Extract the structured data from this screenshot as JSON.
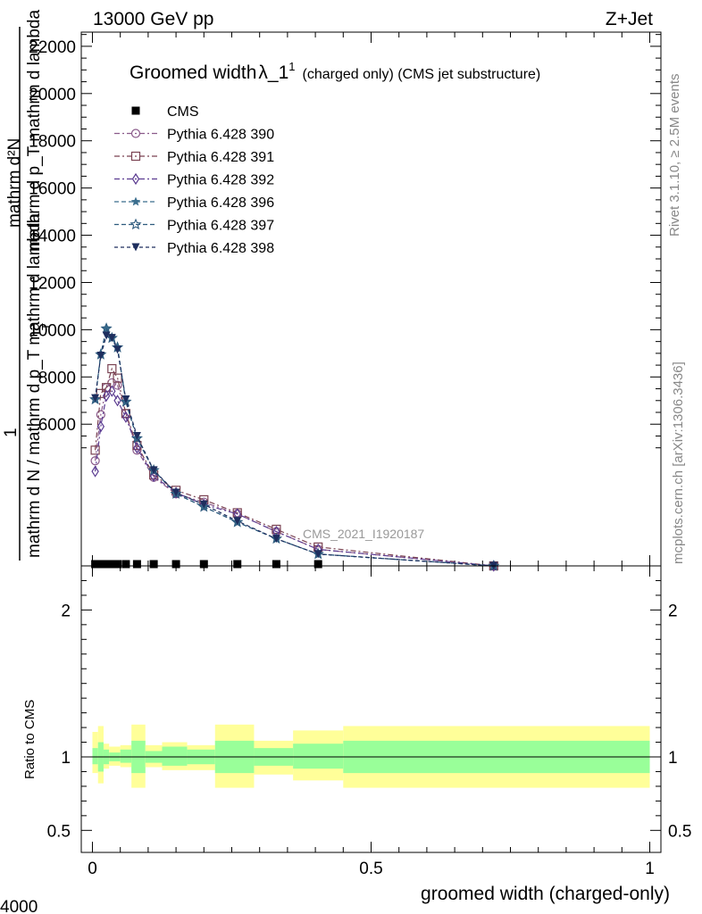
{
  "header": {
    "left_title": "13000 GeV pp",
    "right_title": "Z+Jet"
  },
  "side_labels": {
    "rivet": "Rivet 3.1.10, ≥ 2.5M events",
    "mcplots": "mcplots.cern.ch [arXiv:1306.3436]"
  },
  "watermark": "CMS_2021_I1920187",
  "corner_label": "4000",
  "chart_data": [
    {
      "type": "line",
      "title_main": "Groomed width",
      "title_symbol": "λ_1",
      "title_sup": "1",
      "title_suffix": "(charged only) (CMS jet substructure)",
      "ylabel_top": "mathrm d²N",
      "ylabel_top_denom": "mathrm d p_T mathrm d lambda",
      "ylabel_t_sub": "T",
      "ylabel_one": "1",
      "ylabel_bottom": "mathrm d N / mathrm d p_T mathrm d lambda",
      "xlim": [
        -0.02,
        1.02
      ],
      "ylim": [
        0,
        22600
      ],
      "y_ticks": [
        6000,
        8000,
        10000,
        12000,
        14000,
        16000,
        18000,
        20000,
        22000
      ],
      "y_tick_labels": [
        "6000",
        "8000",
        "10000",
        "12000",
        "14000",
        "16000",
        "18000",
        "20000",
        "22000"
      ],
      "legend_location": "top-left",
      "cms_points": {
        "name": "CMS",
        "x": [
          0.005,
          0.015,
          0.025,
          0.035,
          0.045,
          0.06,
          0.08,
          0.11,
          0.15,
          0.2,
          0.26,
          0.33,
          0.405
        ],
        "y": [
          0,
          0,
          0,
          0,
          0,
          0,
          0,
          0,
          0,
          0,
          0,
          0,
          0
        ],
        "color": "#000000",
        "marker": "square"
      },
      "series": [
        {
          "name": "Pythia 6.428 390",
          "color": "#8a5a8a",
          "marker": "circle-open",
          "dash": "6,3,2,3",
          "x": [
            0.005,
            0.015,
            0.025,
            0.035,
            0.045,
            0.06,
            0.08,
            0.11,
            0.15,
            0.2,
            0.26,
            0.33,
            0.405,
            0.72
          ],
          "y": [
            4450,
            6400,
            7550,
            7750,
            7650,
            6450,
            4900,
            3750,
            3050,
            2700,
            2200,
            1450,
            700,
            0
          ]
        },
        {
          "name": "Pythia 6.428 391",
          "color": "#7a4252",
          "marker": "square-open",
          "dash": "6,3,2,3",
          "x": [
            0.005,
            0.015,
            0.025,
            0.035,
            0.045,
            0.06,
            0.08,
            0.11,
            0.15,
            0.2,
            0.26,
            0.33,
            0.405,
            0.72
          ],
          "y": [
            4900,
            7300,
            7550,
            8350,
            7950,
            6450,
            5100,
            3850,
            3200,
            2800,
            2250,
            1550,
            800,
            0
          ]
        },
        {
          "name": "Pythia 6.428 392",
          "color": "#5a3a90",
          "marker": "diamond-open",
          "dash": "6,3,2,3",
          "x": [
            0.005,
            0.015,
            0.025,
            0.035,
            0.045,
            0.06,
            0.08,
            0.11,
            0.15,
            0.2,
            0.26,
            0.33,
            0.405,
            0.72
          ],
          "y": [
            4000,
            5900,
            7200,
            7400,
            7000,
            6300,
            5000,
            3800,
            3100,
            2600,
            2200,
            1450,
            700,
            0
          ]
        },
        {
          "name": "Pythia 6.428 396",
          "color": "#3a6e8e",
          "marker": "star-filled",
          "dash": "5,3",
          "x": [
            0.005,
            0.015,
            0.025,
            0.035,
            0.045,
            0.06,
            0.08,
            0.11,
            0.15,
            0.2,
            0.26,
            0.33,
            0.405,
            0.72
          ],
          "y": [
            7050,
            8950,
            10050,
            9650,
            9250,
            6950,
            5400,
            4050,
            3050,
            2500,
            1850,
            1150,
            500,
            0
          ]
        },
        {
          "name": "Pythia 6.428 397",
          "color": "#2e5b7e",
          "marker": "star-open",
          "dash": "5,3",
          "x": [
            0.005,
            0.015,
            0.025,
            0.035,
            0.045,
            0.06,
            0.08,
            0.11,
            0.15,
            0.2,
            0.26,
            0.33,
            0.405,
            0.72
          ],
          "y": [
            7050,
            8950,
            10050,
            9650,
            9250,
            6950,
            5400,
            4050,
            3050,
            2500,
            1850,
            1150,
            500,
            0
          ]
        },
        {
          "name": "Pythia 6.428 398",
          "color": "#1e2e5e",
          "marker": "triangle-down-filled",
          "dash": "4,3",
          "x": [
            0.005,
            0.015,
            0.025,
            0.035,
            0.045,
            0.06,
            0.08,
            0.11,
            0.15,
            0.2,
            0.26,
            0.33,
            0.405,
            0.72
          ],
          "y": [
            7100,
            8900,
            9750,
            9650,
            9150,
            7050,
            5500,
            4050,
            3100,
            2600,
            1900,
            1150,
            500,
            0
          ]
        }
      ]
    },
    {
      "type": "area",
      "ylabel": "Ratio to CMS",
      "xlabel": "groomed width (charged-only)",
      "xlim": [
        -0.02,
        1.02
      ],
      "ylim": [
        0.35,
        2.3
      ],
      "x_ticks": [
        0,
        0.5,
        1
      ],
      "x_tick_labels": [
        "0",
        "0.5",
        "1"
      ],
      "y_ticks": [
        0.5,
        1,
        2
      ],
      "y_tick_labels": [
        "0.5",
        "1",
        "2"
      ],
      "reference_line": 1,
      "band_colors": {
        "inner": "#99ff99",
        "outer": "#ffff99"
      },
      "bins": [
        {
          "x0": 0.0,
          "x1": 0.01,
          "inner": [
            0.95,
            1.06
          ],
          "outer": [
            0.89,
            1.17
          ]
        },
        {
          "x0": 0.01,
          "x1": 0.02,
          "inner": [
            0.9,
            1.1
          ],
          "outer": [
            0.82,
            1.21
          ]
        },
        {
          "x0": 0.02,
          "x1": 0.03,
          "inner": [
            0.95,
            1.05
          ],
          "outer": [
            0.92,
            1.09
          ]
        },
        {
          "x0": 0.03,
          "x1": 0.05,
          "inner": [
            0.97,
            1.03
          ],
          "outer": [
            0.94,
            1.07
          ]
        },
        {
          "x0": 0.05,
          "x1": 0.07,
          "inner": [
            0.96,
            1.05
          ],
          "outer": [
            0.93,
            1.08
          ]
        },
        {
          "x0": 0.07,
          "x1": 0.095,
          "inner": [
            0.89,
            1.11
          ],
          "outer": [
            0.79,
            1.22
          ]
        },
        {
          "x0": 0.095,
          "x1": 0.125,
          "inner": [
            0.96,
            1.04
          ],
          "outer": [
            0.93,
            1.08
          ]
        },
        {
          "x0": 0.125,
          "x1": 0.17,
          "inner": [
            0.94,
            1.07
          ],
          "outer": [
            0.91,
            1.1
          ]
        },
        {
          "x0": 0.17,
          "x1": 0.22,
          "inner": [
            0.95,
            1.05
          ],
          "outer": [
            0.91,
            1.08
          ]
        },
        {
          "x0": 0.22,
          "x1": 0.29,
          "inner": [
            0.89,
            1.11
          ],
          "outer": [
            0.79,
            1.22
          ]
        },
        {
          "x0": 0.29,
          "x1": 0.36,
          "inner": [
            0.94,
            1.06
          ],
          "outer": [
            0.88,
            1.11
          ]
        },
        {
          "x0": 0.36,
          "x1": 0.45,
          "inner": [
            0.92,
            1.09
          ],
          "outer": [
            0.84,
            1.18
          ]
        },
        {
          "x0": 0.45,
          "x1": 1.0,
          "inner": [
            0.89,
            1.11
          ],
          "outer": [
            0.79,
            1.21
          ]
        }
      ]
    }
  ]
}
